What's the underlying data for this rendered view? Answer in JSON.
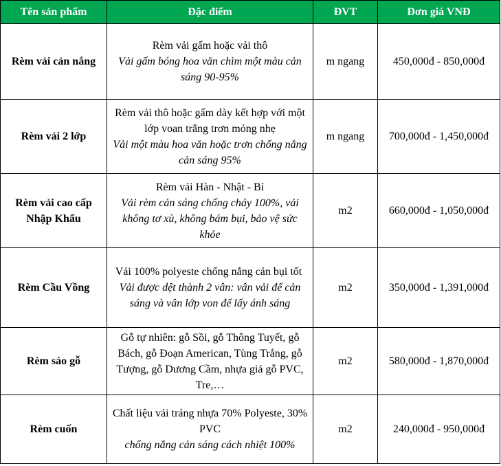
{
  "table": {
    "headers": [
      "Tên sản phẩm",
      "Đặc điểm",
      "ĐVT",
      "Đơn giá VNĐ"
    ],
    "rows": [
      {
        "name": "Rèm vải cản nắng",
        "desc_plain": "Rèm vải gấm hoặc vải thô",
        "desc_italic": "Vải gấm bóng hoa văn chìm một màu cản sáng 90-95%",
        "unit": "m ngang",
        "price": "450,000đ - 850,000đ"
      },
      {
        "name": "Rèm vải 2 lớp",
        "desc_plain": "Rèm vải thô hoặc gấm dày kết hợp với một lớp voan trắng trơn  mỏng nhẹ",
        "desc_italic": "Vải một màu hoa văn hoặc trơn chống nắng cản sáng 95%",
        "unit": "m ngang",
        "price": "700,000đ - 1,450,000đ"
      },
      {
        "name": "Rèm vải cao cấp Nhập Khẩu",
        "desc_plain": "Rèm vải Hàn - Nhật - Bỉ",
        "desc_italic": "Vải rèm cản sáng chống cháy 100%, vải không tơ xù, không bám bụi, bảo vệ sức khỏe",
        "unit": "m2",
        "price": "660,000đ - 1,050,000đ"
      },
      {
        "name": "Rèm Cầu Vồng",
        "desc_plain": "Vải 100% polyeste chống nắng cản bụi tốt",
        "desc_italic": "Vải được dệt thành 2 vân: vân vải để cản sáng và vân lớp von để lấy ánh sáng",
        "unit": "m2",
        "price": "350,000đ - 1,391,000đ"
      },
      {
        "name": "Rèm sáo gỗ",
        "desc_plain": "Gỗ tự nhiên: gỗ Sồi, gỗ Thông Tuyết, gỗ Bách, gỗ Đoạn American, Tùng Trắng, gỗ Tượng, gỗ Dương Cầm, nhựa giả gỗ PVC, Tre,…",
        "desc_italic": "",
        "unit": "m2",
        "price": "580,000đ - 1,870,000đ"
      },
      {
        "name": "Rèm cuốn",
        "desc_plain": "Chất liệu vải tráng nhựa 70% Polyeste, 30% PVC",
        "desc_italic": "chống nắng cản sáng cách nhiệt 100%",
        "unit": "m2",
        "price": "240,000đ - 950,000đ"
      }
    ]
  }
}
